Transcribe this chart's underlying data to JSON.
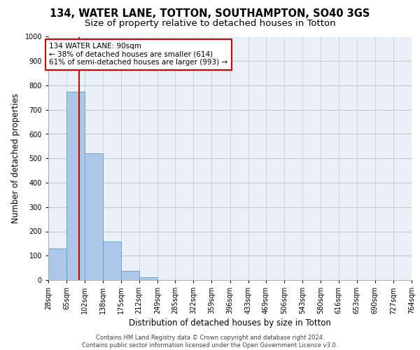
{
  "title_line1": "134, WATER LANE, TOTTON, SOUTHAMPTON, SO40 3GS",
  "title_line2": "Size of property relative to detached houses in Totton",
  "xlabel": "Distribution of detached houses by size in Totton",
  "ylabel": "Number of detached properties",
  "bin_edges": [
    28,
    65,
    102,
    138,
    175,
    212,
    249,
    285,
    322,
    359,
    396,
    433,
    469,
    506,
    543,
    580,
    616,
    653,
    690,
    727,
    764
  ],
  "bar_heights": [
    130,
    775,
    520,
    158,
    38,
    12,
    0,
    0,
    0,
    0,
    0,
    0,
    0,
    0,
    0,
    0,
    0,
    0,
    0,
    0
  ],
  "bar_color": "#aec6e8",
  "bar_edge_color": "#5a9fd4",
  "grid_color": "#c0c8d8",
  "background_color": "#eaf0f8",
  "subject_size": 90,
  "vline_color": "#cc0000",
  "annotation_text": "134 WATER LANE: 90sqm\n← 38% of detached houses are smaller (614)\n61% of semi-detached houses are larger (993) →",
  "annotation_box_color": "#ffffff",
  "annotation_border_color": "#cc0000",
  "ylim": [
    0,
    1000
  ],
  "yticks": [
    0,
    100,
    200,
    300,
    400,
    500,
    600,
    700,
    800,
    900,
    1000
  ],
  "footer_line1": "Contains HM Land Registry data © Crown copyright and database right 2024.",
  "footer_line2": "Contains public sector information licensed under the Open Government Licence v3.0.",
  "title_fontsize": 10.5,
  "subtitle_fontsize": 9.5,
  "tick_fontsize": 7,
  "ylabel_fontsize": 8.5,
  "xlabel_fontsize": 8.5,
  "annotation_fontsize": 7.5,
  "footer_fontsize": 6.0
}
